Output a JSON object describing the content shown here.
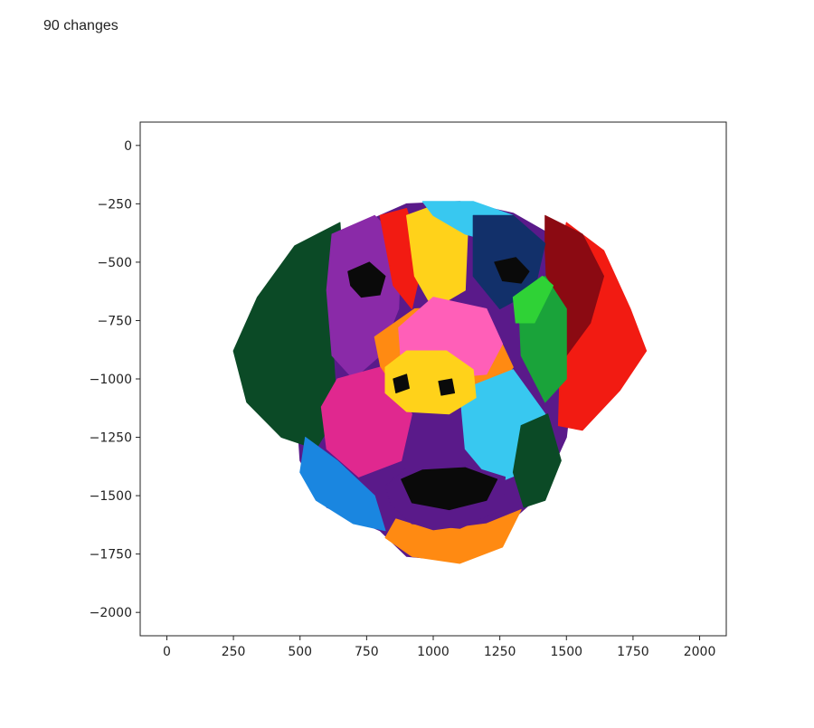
{
  "header": {
    "changes_text": "90 changes"
  },
  "chart_data": {
    "type": "scatter",
    "title": "",
    "xlabel": "",
    "ylabel": "",
    "xlim": [
      -100,
      2100
    ],
    "ylim": [
      -2100,
      100
    ],
    "x_ticks": [
      0,
      250,
      500,
      750,
      1000,
      1250,
      1500,
      1750,
      2000
    ],
    "y_ticks": [
      0,
      -250,
      -500,
      -750,
      -1000,
      -1250,
      -1500,
      -1750,
      -2000
    ],
    "x_tick_labels": [
      "0",
      "250",
      "500",
      "750",
      "1000",
      "1250",
      "1500",
      "1750",
      "2000"
    ],
    "y_tick_labels": [
      "0",
      "−250",
      "−500",
      "−750",
      "−1000",
      "−1250",
      "−1500",
      "−1750",
      "−2000"
    ],
    "grid": false,
    "colors": {
      "dark_green": "#0b4a26",
      "green": "#1aa33a",
      "bright_green": "#2fd236",
      "purple": "#5a1a8a",
      "violet": "#8a2aa8",
      "magenta": "#e0288f",
      "pink": "#ff5fb8",
      "red": "#f21b12",
      "dark_red": "#8b0a12",
      "orange": "#ff8a12",
      "yellow": "#ffd21a",
      "light_blue": "#38c8f0",
      "blue": "#1a86e0",
      "navy": "#12306a",
      "black": "#0a0a0a",
      "white": "#ffffff"
    },
    "regions": [
      {
        "name": "head-base",
        "color": "#5a1a8a",
        "points": [
          [
            700,
            -350
          ],
          [
            900,
            -250
          ],
          [
            1100,
            -240
          ],
          [
            1300,
            -290
          ],
          [
            1500,
            -420
          ],
          [
            1550,
            -750
          ],
          [
            1500,
            -1250
          ],
          [
            1400,
            -1500
          ],
          [
            1300,
            -1600
          ],
          [
            1100,
            -1780
          ],
          [
            900,
            -1760
          ],
          [
            800,
            -1650
          ],
          [
            600,
            -1550
          ],
          [
            500,
            -1350
          ],
          [
            480,
            -1000
          ],
          [
            500,
            -650
          ],
          [
            600,
            -420
          ]
        ]
      },
      {
        "name": "left-ear",
        "color": "#0b4a26",
        "points": [
          [
            650,
            -330
          ],
          [
            480,
            -430
          ],
          [
            340,
            -650
          ],
          [
            250,
            -880
          ],
          [
            300,
            -1100
          ],
          [
            430,
            -1250
          ],
          [
            560,
            -1300
          ],
          [
            640,
            -1150
          ],
          [
            620,
            -800
          ],
          [
            660,
            -500
          ]
        ]
      },
      {
        "name": "right-ear",
        "color": "#f21b12",
        "points": [
          [
            1500,
            -330
          ],
          [
            1640,
            -450
          ],
          [
            1740,
            -700
          ],
          [
            1800,
            -880
          ],
          [
            1700,
            -1050
          ],
          [
            1560,
            -1220
          ],
          [
            1470,
            -1200
          ],
          [
            1480,
            -800
          ],
          [
            1470,
            -500
          ]
        ]
      },
      {
        "name": "right-ear-shadow",
        "color": "#8b0a12",
        "points": [
          [
            1420,
            -300
          ],
          [
            1560,
            -380
          ],
          [
            1640,
            -560
          ],
          [
            1590,
            -760
          ],
          [
            1500,
            -900
          ],
          [
            1430,
            -700
          ],
          [
            1420,
            -450
          ]
        ]
      },
      {
        "name": "left-face-purple",
        "color": "#8a2aa8",
        "points": [
          [
            620,
            -380
          ],
          [
            780,
            -300
          ],
          [
            880,
            -420
          ],
          [
            870,
            -700
          ],
          [
            800,
            -900
          ],
          [
            700,
            -1000
          ],
          [
            620,
            -900
          ],
          [
            600,
            -620
          ]
        ]
      },
      {
        "name": "forehead-red",
        "color": "#f21b12",
        "points": [
          [
            800,
            -300
          ],
          [
            900,
            -270
          ],
          [
            960,
            -500
          ],
          [
            920,
            -700
          ],
          [
            850,
            -600
          ]
        ]
      },
      {
        "name": "forehead-yellow",
        "color": "#ffd21a",
        "points": [
          [
            900,
            -300
          ],
          [
            1020,
            -250
          ],
          [
            1130,
            -350
          ],
          [
            1120,
            -620
          ],
          [
            1000,
            -700
          ],
          [
            930,
            -560
          ]
        ]
      },
      {
        "name": "forehead-blue",
        "color": "#38c8f0",
        "points": [
          [
            960,
            -240
          ],
          [
            1150,
            -240
          ],
          [
            1300,
            -300
          ],
          [
            1250,
            -420
          ],
          [
            1120,
            -380
          ],
          [
            1000,
            -300
          ]
        ]
      },
      {
        "name": "right-face-navy",
        "color": "#12306a",
        "points": [
          [
            1150,
            -300
          ],
          [
            1300,
            -300
          ],
          [
            1420,
            -420
          ],
          [
            1380,
            -620
          ],
          [
            1250,
            -700
          ],
          [
            1150,
            -560
          ]
        ]
      },
      {
        "name": "right-cheek-green",
        "color": "#1aa33a",
        "points": [
          [
            1320,
            -640
          ],
          [
            1420,
            -560
          ],
          [
            1500,
            -700
          ],
          [
            1500,
            -1000
          ],
          [
            1420,
            -1100
          ],
          [
            1330,
            -900
          ]
        ]
      },
      {
        "name": "snout-orange",
        "color": "#ff8a12",
        "points": [
          [
            780,
            -820
          ],
          [
            930,
            -700
          ],
          [
            1080,
            -690
          ],
          [
            1230,
            -780
          ],
          [
            1300,
            -950
          ],
          [
            1200,
            -1100
          ],
          [
            1000,
            -1120
          ],
          [
            820,
            -1050
          ]
        ]
      },
      {
        "name": "snout-pink",
        "color": "#ff5fb8",
        "points": [
          [
            870,
            -780
          ],
          [
            1000,
            -650
          ],
          [
            1200,
            -700
          ],
          [
            1260,
            -850
          ],
          [
            1200,
            -980
          ],
          [
            1000,
            -1000
          ],
          [
            880,
            -940
          ]
        ]
      },
      {
        "name": "left-cheek-magenta",
        "color": "#e0288f",
        "points": [
          [
            640,
            -1000
          ],
          [
            800,
            -950
          ],
          [
            920,
            -1150
          ],
          [
            880,
            -1350
          ],
          [
            720,
            -1420
          ],
          [
            600,
            -1300
          ],
          [
            580,
            -1120
          ]
        ]
      },
      {
        "name": "right-cheek-blue",
        "color": "#38c8f0",
        "points": [
          [
            1100,
            -1050
          ],
          [
            1300,
            -960
          ],
          [
            1420,
            -1150
          ],
          [
            1380,
            -1380
          ],
          [
            1230,
            -1450
          ],
          [
            1120,
            -1300
          ]
        ]
      },
      {
        "name": "lower-left-blue",
        "color": "#1a86e0",
        "points": [
          [
            520,
            -1250
          ],
          [
            640,
            -1350
          ],
          [
            780,
            -1500
          ],
          [
            820,
            -1650
          ],
          [
            700,
            -1620
          ],
          [
            560,
            -1520
          ],
          [
            500,
            -1400
          ]
        ]
      },
      {
        "name": "chin-orange",
        "color": "#ff8a12",
        "points": [
          [
            860,
            -1600
          ],
          [
            1000,
            -1650
          ],
          [
            1200,
            -1620
          ],
          [
            1330,
            -1560
          ],
          [
            1260,
            -1720
          ],
          [
            1100,
            -1790
          ],
          [
            920,
            -1760
          ],
          [
            820,
            -1680
          ]
        ]
      },
      {
        "name": "mouth-purple",
        "color": "#5a1a8a",
        "points": [
          [
            820,
            -1460
          ],
          [
            900,
            -1380
          ],
          [
            1100,
            -1360
          ],
          [
            1270,
            -1420
          ],
          [
            1260,
            -1560
          ],
          [
            1100,
            -1640
          ],
          [
            920,
            -1620
          ],
          [
            840,
            -1540
          ]
        ]
      },
      {
        "name": "mouth-black",
        "color": "#0a0a0a",
        "points": [
          [
            880,
            -1430
          ],
          [
            960,
            -1390
          ],
          [
            1120,
            -1380
          ],
          [
            1240,
            -1430
          ],
          [
            1200,
            -1520
          ],
          [
            1060,
            -1560
          ],
          [
            920,
            -1530
          ]
        ]
      },
      {
        "name": "nose-yellow",
        "color": "#ffd21a",
        "points": [
          [
            820,
            -950
          ],
          [
            900,
            -880
          ],
          [
            1050,
            -880
          ],
          [
            1150,
            -960
          ],
          [
            1160,
            -1080
          ],
          [
            1060,
            -1150
          ],
          [
            900,
            -1140
          ],
          [
            820,
            -1060
          ]
        ]
      },
      {
        "name": "lower-right-green",
        "color": "#0b4a26",
        "points": [
          [
            1330,
            -1200
          ],
          [
            1430,
            -1150
          ],
          [
            1480,
            -1350
          ],
          [
            1420,
            -1520
          ],
          [
            1340,
            -1550
          ],
          [
            1300,
            -1400
          ]
        ]
      },
      {
        "name": "right-eye-green",
        "color": "#2fd236",
        "points": [
          [
            1300,
            -650
          ],
          [
            1410,
            -560
          ],
          [
            1450,
            -600
          ],
          [
            1380,
            -760
          ],
          [
            1310,
            -760
          ]
        ]
      },
      {
        "name": "left-eye",
        "color": "#0a0a0a",
        "points": [
          [
            680,
            -540
          ],
          [
            760,
            -500
          ],
          [
            820,
            -560
          ],
          [
            800,
            -640
          ],
          [
            730,
            -650
          ],
          [
            690,
            -600
          ]
        ]
      },
      {
        "name": "right-eye",
        "color": "#0a0a0a",
        "points": [
          [
            1230,
            -500
          ],
          [
            1310,
            -480
          ],
          [
            1360,
            -540
          ],
          [
            1330,
            -590
          ],
          [
            1260,
            -580
          ]
        ]
      },
      {
        "name": "left-nostril",
        "color": "#0a0a0a",
        "points": [
          [
            850,
            -1000
          ],
          [
            900,
            -980
          ],
          [
            910,
            -1040
          ],
          [
            860,
            -1060
          ]
        ]
      },
      {
        "name": "right-nostril",
        "color": "#0a0a0a",
        "points": [
          [
            1020,
            -1010
          ],
          [
            1070,
            -1000
          ],
          [
            1080,
            -1060
          ],
          [
            1030,
            -1070
          ]
        ]
      }
    ]
  }
}
